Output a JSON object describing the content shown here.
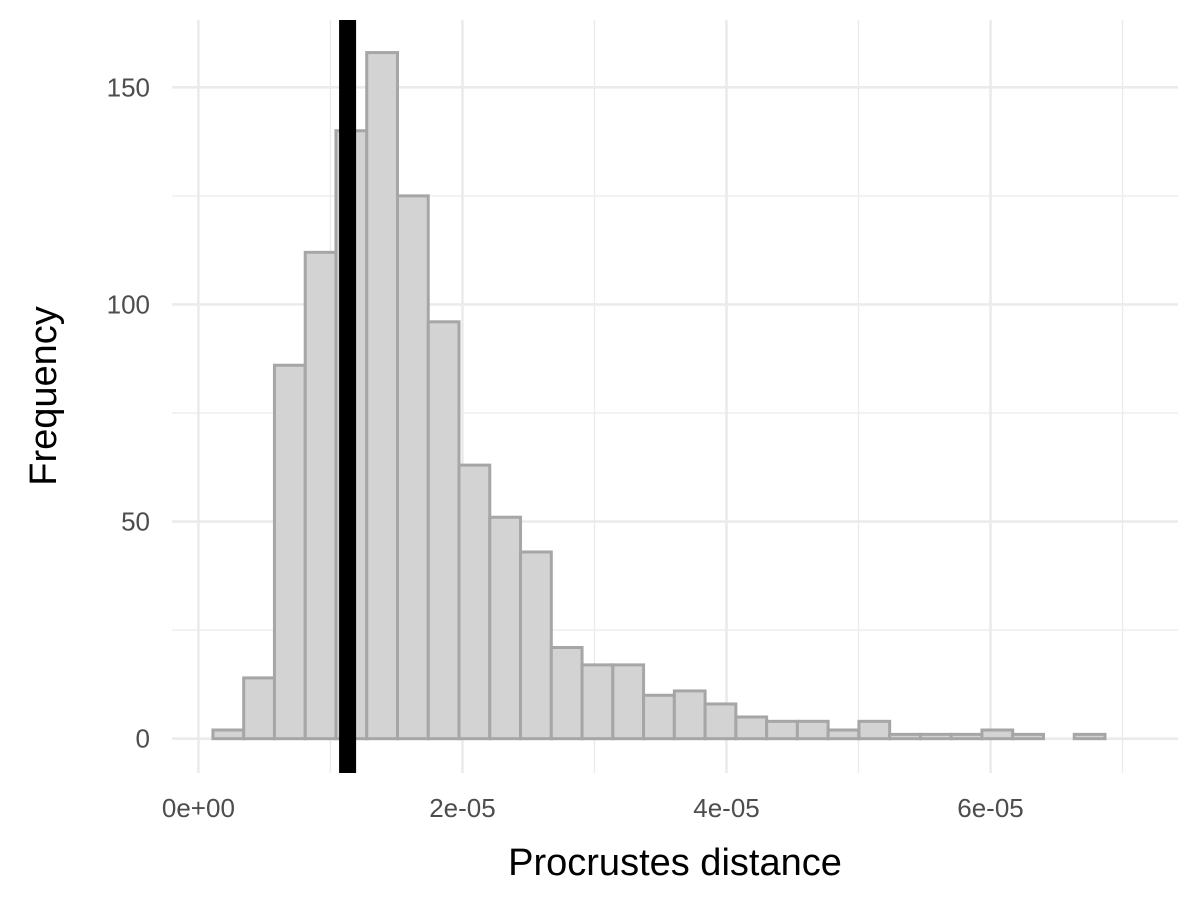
{
  "chart_data": {
    "type": "bar",
    "subtype": "histogram",
    "xlabel": "Procrustes distance",
    "ylabel": "Frequency",
    "xlim": [
      -2e-06,
      7.42e-05
    ],
    "ylim": [
      -7.9,
      165.5
    ],
    "x_ticks": [
      {
        "value": 0,
        "label": "0e+00"
      },
      {
        "value": 2e-05,
        "label": "2e-05"
      },
      {
        "value": 4e-05,
        "label": "4e-05"
      },
      {
        "value": 6e-05,
        "label": "6e-05"
      }
    ],
    "x_minor_ticks": [
      1e-05,
      3e-05,
      5e-05,
      7e-05
    ],
    "y_ticks": [
      {
        "value": 0,
        "label": "0"
      },
      {
        "value": 50,
        "label": "50"
      },
      {
        "value": 100,
        "label": "100"
      },
      {
        "value": 150,
        "label": "150"
      }
    ],
    "y_minor_ticks": [
      25,
      75,
      125
    ],
    "grid": true,
    "bins": {
      "start": 1.1e-06,
      "width": 2.33e-06,
      "counts": [
        2,
        14,
        86,
        112,
        140,
        158,
        125,
        96,
        63,
        51,
        43,
        21,
        17,
        17,
        10,
        11,
        8,
        5,
        4,
        4,
        2,
        4,
        1,
        1,
        1,
        2,
        1,
        0,
        1
      ]
    },
    "vline": {
      "x": 1.13e-05,
      "color": "#000000"
    },
    "colors": {
      "bar_fill": "#d3d3d3",
      "bar_stroke": "#a6a6a6",
      "grid": "#ebebeb",
      "vline": "#000000"
    }
  }
}
